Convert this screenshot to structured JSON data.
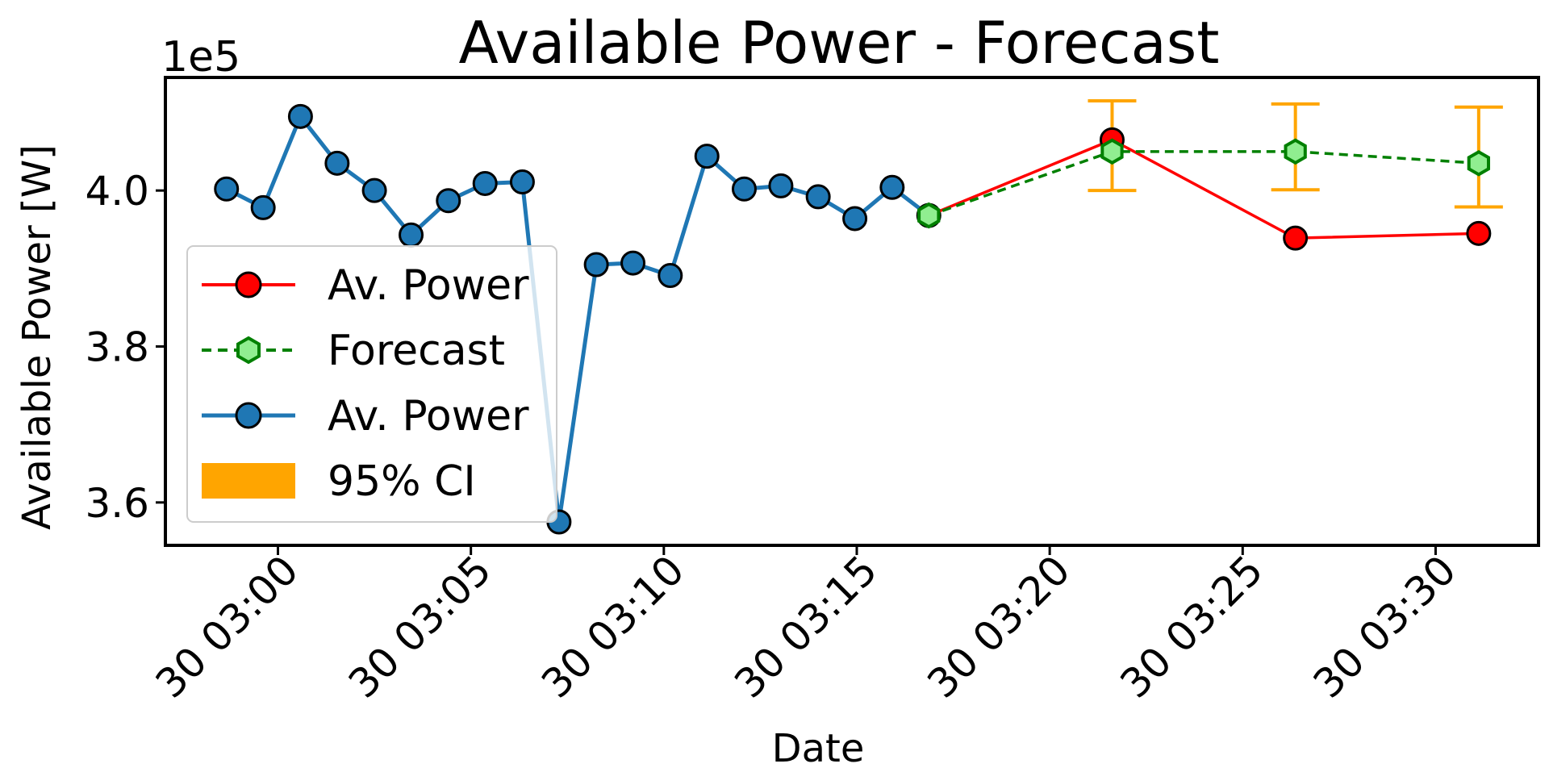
{
  "chart_data": {
    "type": "line",
    "title": "Available Power - Forecast",
    "xlabel": "Date",
    "ylabel": "Available Power [W]",
    "y_offset_label": "1e5",
    "y_scale_factor": 100000,
    "xlim": [
      "30 02:57:05",
      "30 03:32:40"
    ],
    "ylim": [
      354500,
      414500
    ],
    "x_ticks": [
      "30 03:00",
      "30 03:05",
      "30 03:10",
      "30 03:15",
      "30 03:20",
      "30 03:25",
      "30 03:30"
    ],
    "y_ticks": [
      "3.6",
      "3.8",
      "4.0"
    ],
    "grid": false,
    "legend_placement": "center-left",
    "series": [
      {
        "name": "Av. Power",
        "role": "history",
        "color": "#1f77b4",
        "marker": "circle",
        "line_style": "solid",
        "points": [
          {
            "x": "30 02:58:40",
            "y": 400200
          },
          {
            "x": "30 02:59:37",
            "y": 397800
          },
          {
            "x": "30 03:00:35",
            "y": 409500
          },
          {
            "x": "30 03:01:32",
            "y": 403500
          },
          {
            "x": "30 03:02:30",
            "y": 400000
          },
          {
            "x": "30 03:03:27",
            "y": 394300
          },
          {
            "x": "30 03:04:25",
            "y": 398700
          },
          {
            "x": "30 03:05:22",
            "y": 400900
          },
          {
            "x": "30 03:06:20",
            "y": 401100
          },
          {
            "x": "30 03:07:17",
            "y": 357500
          },
          {
            "x": "30 03:08:15",
            "y": 390500
          },
          {
            "x": "30 03:09:12",
            "y": 390700
          },
          {
            "x": "30 03:10:10",
            "y": 389100
          },
          {
            "x": "30 03:11:07",
            "y": 404400
          },
          {
            "x": "30 03:12:05",
            "y": 400200
          },
          {
            "x": "30 03:13:02",
            "y": 400600
          },
          {
            "x": "30 03:14:00",
            "y": 399200
          },
          {
            "x": "30 03:14:57",
            "y": 396400
          },
          {
            "x": "30 03:15:55",
            "y": 400400
          },
          {
            "x": "30 03:16:52",
            "y": 396800
          }
        ]
      },
      {
        "name": "Av. Power",
        "role": "actual",
        "color": "#ff0000",
        "marker": "circle",
        "line_style": "solid",
        "points": [
          {
            "x": "30 03:16:52",
            "y": 396800
          },
          {
            "x": "30 03:21:37",
            "y": 406500
          },
          {
            "x": "30 03:26:22",
            "y": 393900
          },
          {
            "x": "30 03:31:07",
            "y": 394500
          }
        ]
      },
      {
        "name": "Forecast",
        "role": "forecast",
        "color": "#008000",
        "marker_fill": "#90ee90",
        "marker": "hexagon",
        "line_style": "dashed",
        "points": [
          {
            "x": "30 03:16:52",
            "y": 396800
          },
          {
            "x": "30 03:21:37",
            "y": 405000,
            "ci_low": 400000,
            "ci_high": 411500
          },
          {
            "x": "30 03:26:22",
            "y": 405000,
            "ci_low": 400100,
            "ci_high": 411100
          },
          {
            "x": "30 03:31:07",
            "y": 403500,
            "ci_low": 397900,
            "ci_high": 410700
          }
        ]
      }
    ],
    "ci_color": "#ffa500",
    "legend": [
      {
        "label": "Av. Power",
        "series_index": 1
      },
      {
        "label": "Forecast",
        "series_index": 2
      },
      {
        "label": "Av. Power",
        "series_index": 0
      },
      {
        "label": "95% CI",
        "kind": "patch"
      }
    ]
  }
}
